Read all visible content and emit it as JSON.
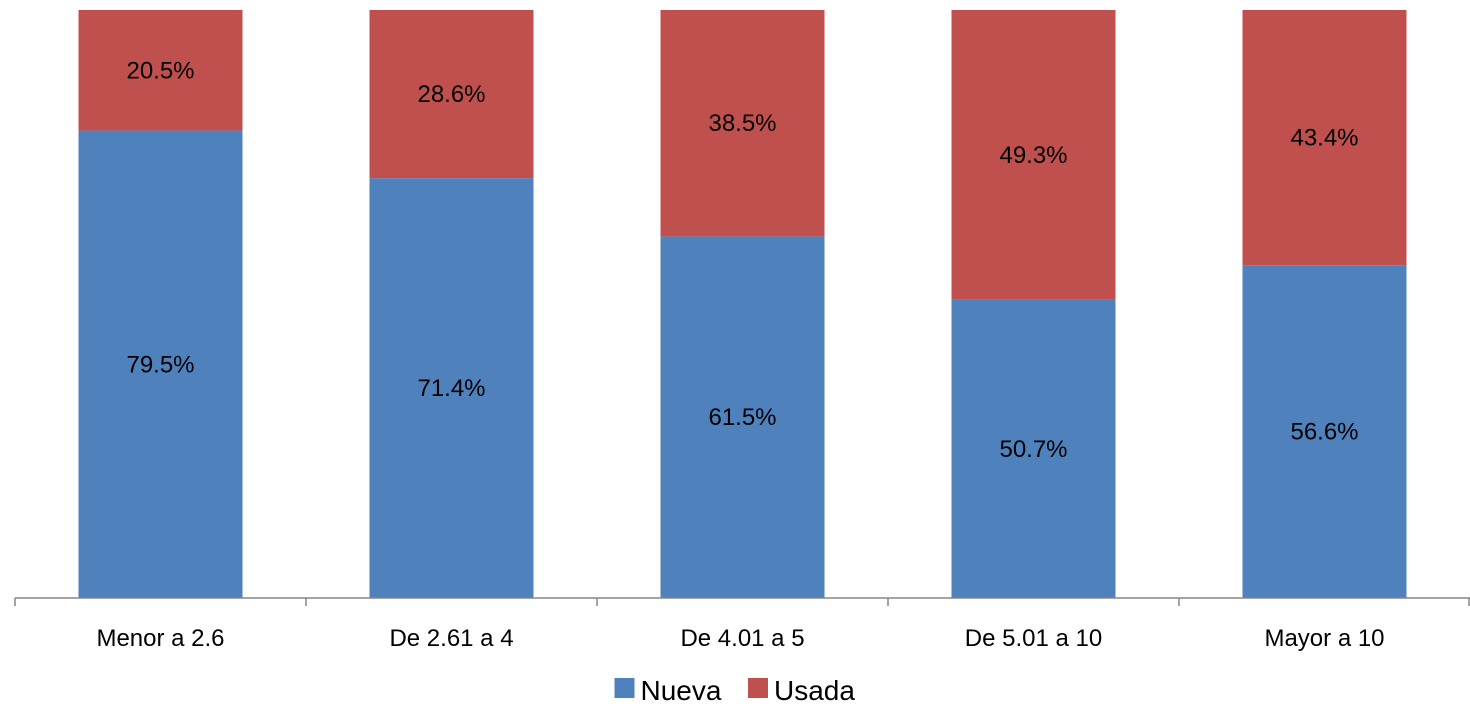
{
  "chart_data": {
    "type": "bar",
    "stacked": true,
    "percent_stacked": true,
    "categories": [
      "Menor a 2.6",
      "De 2.61 a 4",
      "De 4.01 a 5",
      "De 5.01 a 10",
      "Mayor a 10"
    ],
    "series": [
      {
        "name": "Nueva",
        "color": "#4F81BD",
        "values": [
          79.5,
          71.4,
          61.5,
          50.7,
          56.6
        ],
        "labels": [
          "79.5%",
          "71.4%",
          "61.5%",
          "50.7%",
          "56.6%"
        ]
      },
      {
        "name": "Usada",
        "color": "#C0504D",
        "values": [
          20.5,
          28.6,
          38.5,
          49.3,
          43.4
        ],
        "labels": [
          "20.5%",
          "28.6%",
          "38.5%",
          "49.3%",
          "43.4%"
        ]
      }
    ],
    "ylim": [
      0,
      100
    ],
    "grid": false,
    "legend_position": "bottom",
    "title": "",
    "xlabel": "",
    "ylabel": ""
  }
}
